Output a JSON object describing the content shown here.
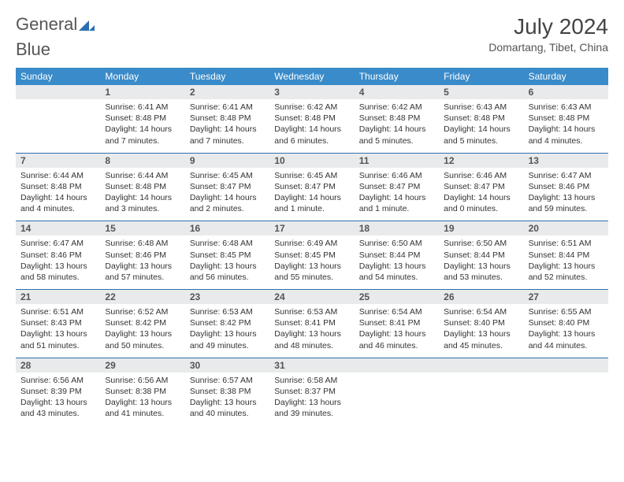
{
  "logo": {
    "text1": "General",
    "text2": "Blue"
  },
  "title": "July 2024",
  "location": "Domartang, Tibet, China",
  "colors": {
    "header_bg": "#3a8bc9",
    "daynum_bg": "#e9eaeb",
    "rule": "#2c6fb0",
    "text": "#333333",
    "title": "#444444"
  },
  "dow": [
    "Sunday",
    "Monday",
    "Tuesday",
    "Wednesday",
    "Thursday",
    "Friday",
    "Saturday"
  ],
  "weeks": [
    [
      {
        "n": "",
        "lines": [
          "",
          "",
          ""
        ]
      },
      {
        "n": "1",
        "lines": [
          "Sunrise: 6:41 AM",
          "Sunset: 8:48 PM",
          "Daylight: 14 hours and 7 minutes."
        ]
      },
      {
        "n": "2",
        "lines": [
          "Sunrise: 6:41 AM",
          "Sunset: 8:48 PM",
          "Daylight: 14 hours and 7 minutes."
        ]
      },
      {
        "n": "3",
        "lines": [
          "Sunrise: 6:42 AM",
          "Sunset: 8:48 PM",
          "Daylight: 14 hours and 6 minutes."
        ]
      },
      {
        "n": "4",
        "lines": [
          "Sunrise: 6:42 AM",
          "Sunset: 8:48 PM",
          "Daylight: 14 hours and 5 minutes."
        ]
      },
      {
        "n": "5",
        "lines": [
          "Sunrise: 6:43 AM",
          "Sunset: 8:48 PM",
          "Daylight: 14 hours and 5 minutes."
        ]
      },
      {
        "n": "6",
        "lines": [
          "Sunrise: 6:43 AM",
          "Sunset: 8:48 PM",
          "Daylight: 14 hours and 4 minutes."
        ]
      }
    ],
    [
      {
        "n": "7",
        "lines": [
          "Sunrise: 6:44 AM",
          "Sunset: 8:48 PM",
          "Daylight: 14 hours and 4 minutes."
        ]
      },
      {
        "n": "8",
        "lines": [
          "Sunrise: 6:44 AM",
          "Sunset: 8:48 PM",
          "Daylight: 14 hours and 3 minutes."
        ]
      },
      {
        "n": "9",
        "lines": [
          "Sunrise: 6:45 AM",
          "Sunset: 8:47 PM",
          "Daylight: 14 hours and 2 minutes."
        ]
      },
      {
        "n": "10",
        "lines": [
          "Sunrise: 6:45 AM",
          "Sunset: 8:47 PM",
          "Daylight: 14 hours and 1 minute."
        ]
      },
      {
        "n": "11",
        "lines": [
          "Sunrise: 6:46 AM",
          "Sunset: 8:47 PM",
          "Daylight: 14 hours and 1 minute."
        ]
      },
      {
        "n": "12",
        "lines": [
          "Sunrise: 6:46 AM",
          "Sunset: 8:47 PM",
          "Daylight: 14 hours and 0 minutes."
        ]
      },
      {
        "n": "13",
        "lines": [
          "Sunrise: 6:47 AM",
          "Sunset: 8:46 PM",
          "Daylight: 13 hours and 59 minutes."
        ]
      }
    ],
    [
      {
        "n": "14",
        "lines": [
          "Sunrise: 6:47 AM",
          "Sunset: 8:46 PM",
          "Daylight: 13 hours and 58 minutes."
        ]
      },
      {
        "n": "15",
        "lines": [
          "Sunrise: 6:48 AM",
          "Sunset: 8:46 PM",
          "Daylight: 13 hours and 57 minutes."
        ]
      },
      {
        "n": "16",
        "lines": [
          "Sunrise: 6:48 AM",
          "Sunset: 8:45 PM",
          "Daylight: 13 hours and 56 minutes."
        ]
      },
      {
        "n": "17",
        "lines": [
          "Sunrise: 6:49 AM",
          "Sunset: 8:45 PM",
          "Daylight: 13 hours and 55 minutes."
        ]
      },
      {
        "n": "18",
        "lines": [
          "Sunrise: 6:50 AM",
          "Sunset: 8:44 PM",
          "Daylight: 13 hours and 54 minutes."
        ]
      },
      {
        "n": "19",
        "lines": [
          "Sunrise: 6:50 AM",
          "Sunset: 8:44 PM",
          "Daylight: 13 hours and 53 minutes."
        ]
      },
      {
        "n": "20",
        "lines": [
          "Sunrise: 6:51 AM",
          "Sunset: 8:44 PM",
          "Daylight: 13 hours and 52 minutes."
        ]
      }
    ],
    [
      {
        "n": "21",
        "lines": [
          "Sunrise: 6:51 AM",
          "Sunset: 8:43 PM",
          "Daylight: 13 hours and 51 minutes."
        ]
      },
      {
        "n": "22",
        "lines": [
          "Sunrise: 6:52 AM",
          "Sunset: 8:42 PM",
          "Daylight: 13 hours and 50 minutes."
        ]
      },
      {
        "n": "23",
        "lines": [
          "Sunrise: 6:53 AM",
          "Sunset: 8:42 PM",
          "Daylight: 13 hours and 49 minutes."
        ]
      },
      {
        "n": "24",
        "lines": [
          "Sunrise: 6:53 AM",
          "Sunset: 8:41 PM",
          "Daylight: 13 hours and 48 minutes."
        ]
      },
      {
        "n": "25",
        "lines": [
          "Sunrise: 6:54 AM",
          "Sunset: 8:41 PM",
          "Daylight: 13 hours and 46 minutes."
        ]
      },
      {
        "n": "26",
        "lines": [
          "Sunrise: 6:54 AM",
          "Sunset: 8:40 PM",
          "Daylight: 13 hours and 45 minutes."
        ]
      },
      {
        "n": "27",
        "lines": [
          "Sunrise: 6:55 AM",
          "Sunset: 8:40 PM",
          "Daylight: 13 hours and 44 minutes."
        ]
      }
    ],
    [
      {
        "n": "28",
        "lines": [
          "Sunrise: 6:56 AM",
          "Sunset: 8:39 PM",
          "Daylight: 13 hours and 43 minutes."
        ]
      },
      {
        "n": "29",
        "lines": [
          "Sunrise: 6:56 AM",
          "Sunset: 8:38 PM",
          "Daylight: 13 hours and 41 minutes."
        ]
      },
      {
        "n": "30",
        "lines": [
          "Sunrise: 6:57 AM",
          "Sunset: 8:38 PM",
          "Daylight: 13 hours and 40 minutes."
        ]
      },
      {
        "n": "31",
        "lines": [
          "Sunrise: 6:58 AM",
          "Sunset: 8:37 PM",
          "Daylight: 13 hours and 39 minutes."
        ]
      },
      {
        "n": "",
        "lines": [
          "",
          "",
          ""
        ]
      },
      {
        "n": "",
        "lines": [
          "",
          "",
          ""
        ]
      },
      {
        "n": "",
        "lines": [
          "",
          "",
          ""
        ]
      }
    ]
  ]
}
